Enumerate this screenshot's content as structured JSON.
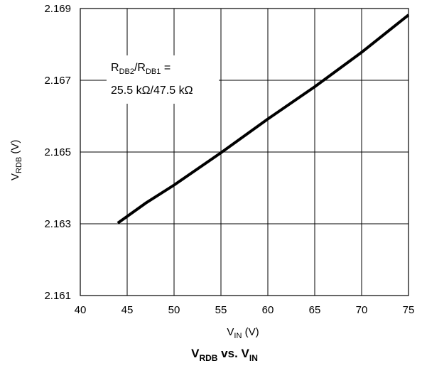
{
  "chart_data": {
    "type": "line",
    "title": {
      "main": "V",
      "sub1": "RDB",
      "mid": " vs. V",
      "sub2": "IN"
    },
    "xlabel": {
      "main": "V",
      "sub": "IN",
      "unit": " (V)"
    },
    "ylabel": {
      "main": "V",
      "sub": "RDB",
      "unit": " (V)"
    },
    "xlim": [
      40,
      75
    ],
    "ylim": [
      2.161,
      2.169
    ],
    "xticks": [
      "40",
      "45",
      "50",
      "55",
      "60",
      "65",
      "70",
      "75"
    ],
    "yticks": [
      "2.161",
      "2.163",
      "2.165",
      "2.167",
      "2.169"
    ],
    "grid": true,
    "annotation": {
      "line1": {
        "a": "R",
        "a_sub": "DB2",
        "b": "/R",
        "b_sub": "DB1",
        "c": " ="
      },
      "line2": "25.5 kΩ/47.5 kΩ"
    },
    "series": [
      {
        "x": [
          44,
          47,
          50,
          55,
          60,
          65,
          70,
          75
        ],
        "y": [
          2.16302,
          2.16358,
          2.16408,
          2.16498,
          2.16592,
          2.16682,
          2.16778,
          2.16882
        ]
      }
    ]
  }
}
